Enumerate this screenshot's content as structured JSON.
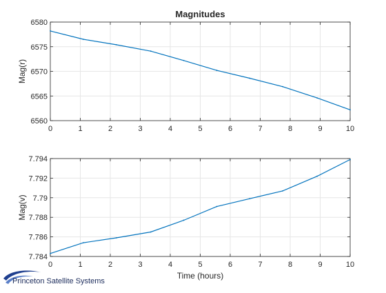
{
  "colors": {
    "line": "#0072bd",
    "grid": "#e6e6e6",
    "axis": "#262626",
    "logo": "#1f3f8f"
  },
  "logo": {
    "text": "Princeton Satellite Systems"
  },
  "chart_data": [
    {
      "type": "line",
      "title": "Magnitudes",
      "xlabel": "",
      "ylabel": "Mag(r)",
      "xlim": [
        0,
        10
      ],
      "ylim": [
        6560,
        6580
      ],
      "xticks": [
        0,
        1,
        2,
        3,
        4,
        5,
        6,
        7,
        8,
        9,
        10
      ],
      "xtick_labels": [
        "0",
        "1",
        "2",
        "3",
        "4",
        "5",
        "6",
        "7",
        "8",
        "9",
        "10"
      ],
      "yticks": [
        6560,
        6565,
        6570,
        6575,
        6580
      ],
      "ytick_labels": [
        "6560",
        "6565",
        "6570",
        "6575",
        "6580"
      ],
      "grid": true,
      "series": [
        {
          "x": [
            0,
            1.1,
            2.2,
            3.35,
            4.45,
            5.55,
            6.65,
            7.75,
            8.9,
            10
          ],
          "values": [
            6578.2,
            6576.5,
            6575.4,
            6574.1,
            6572.2,
            6570.2,
            6568.6,
            6566.9,
            6564.6,
            6562.2
          ]
        }
      ]
    },
    {
      "type": "line",
      "title": "",
      "xlabel": "Time (hours)",
      "ylabel": "Mag(v)",
      "xlim": [
        0,
        10
      ],
      "ylim": [
        7.784,
        7.794
      ],
      "xticks": [
        0,
        1,
        2,
        3,
        4,
        5,
        6,
        7,
        8,
        9,
        10
      ],
      "xtick_labels": [
        "0",
        "1",
        "2",
        "3",
        "4",
        "5",
        "6",
        "7",
        "8",
        "9",
        "10"
      ],
      "yticks": [
        7.784,
        7.786,
        7.788,
        7.79,
        7.792,
        7.794
      ],
      "ytick_labels": [
        "7.784",
        "7.786",
        "7.788",
        "7.79",
        "7.792",
        "7.794"
      ],
      "grid": true,
      "series": [
        {
          "x": [
            0,
            1.1,
            2.2,
            3.35,
            4.45,
            5.55,
            6.65,
            7.75,
            8.9,
            10
          ],
          "values": [
            7.7843,
            7.7854,
            7.7859,
            7.7865,
            7.7877,
            7.7891,
            7.7899,
            7.7907,
            7.7922,
            7.7939
          ]
        }
      ]
    }
  ]
}
